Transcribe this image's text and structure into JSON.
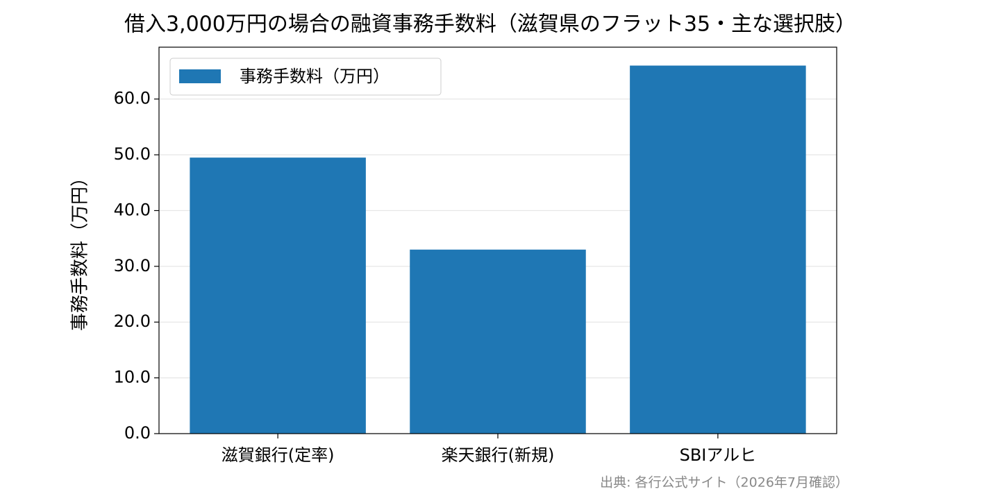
{
  "chart_data": {
    "type": "bar",
    "title": "借入3,000万円の場合の融資事務手数料（滋賀県のフラット35・主な選択肢）",
    "y_label": "事務手数料（万円）",
    "source": "出典: 各行公式サイト（2026年7月確認）",
    "categories": [
      "滋賀銀行(定率)",
      "楽天銀行(新規)",
      "SBIアルヒ"
    ],
    "series": [
      {
        "name": "事務手数料（万円）",
        "color": "#1f77b4",
        "values": [
          49.5,
          33.0,
          66.0
        ]
      }
    ],
    "ylim": [
      0,
      69.3
    ],
    "yticks": [
      {
        "value": 0,
        "label": "0.0"
      },
      {
        "value": 10,
        "label": "10.0"
      },
      {
        "value": 20,
        "label": "20.0"
      },
      {
        "value": 30,
        "label": "30.0"
      },
      {
        "value": 40,
        "label": "40.0"
      },
      {
        "value": 50,
        "label": "50.0"
      },
      {
        "value": 60,
        "label": "60.0"
      }
    ],
    "grid": true,
    "legend": "upper left"
  }
}
